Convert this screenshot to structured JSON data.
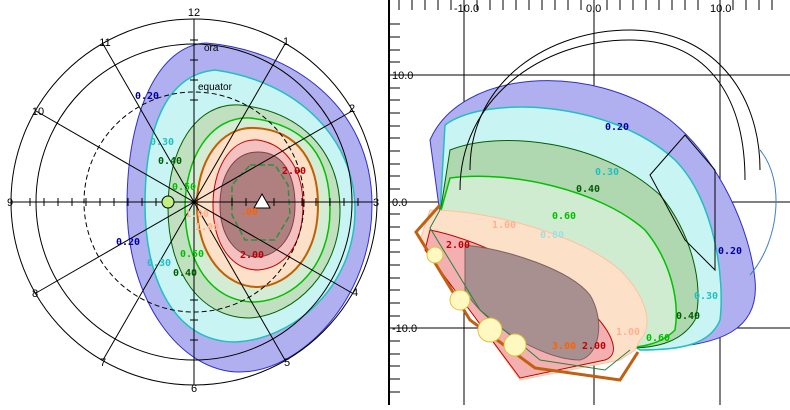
{
  "left": {
    "clock_labels": [
      "12",
      "1",
      "2",
      "3",
      "4",
      "5",
      "6",
      "7",
      "8",
      "9",
      "10",
      "11"
    ],
    "ring_labels": {
      "ora": "ora",
      "equator": "equator"
    },
    "contour_labels": [
      {
        "text": "0.20",
        "color": "#0000a0"
      },
      {
        "text": "0.30",
        "color": "#20c0c0"
      },
      {
        "text": "0.40",
        "color": "#006000"
      },
      {
        "text": "0.50",
        "color": "#00c000"
      },
      {
        "text": "1.00",
        "color": "#ffb090"
      },
      {
        "text": "2.00",
        "color": "#c00000"
      },
      {
        "text": "0.20",
        "color": "#0000a0"
      },
      {
        "text": "0.30",
        "color": "#20c0c0"
      },
      {
        "text": "0.40",
        "color": "#006000"
      },
      {
        "text": "0.50",
        "color": "#00c000"
      },
      {
        "text": "1.00",
        "color": "#ffb090"
      },
      {
        "text": "2.00",
        "color": "#c00000"
      },
      {
        "text": ".00",
        "color": "#ff6000"
      }
    ]
  },
  "right": {
    "axis_top": [
      "-10.0",
      "0.0",
      "10.0"
    ],
    "axis_left": [
      "10.0",
      "0.0",
      "-10.0"
    ],
    "contour_labels": [
      {
        "text": "0.20",
        "color": "#0000a0"
      },
      {
        "text": "0.30",
        "color": "#20c0c0"
      },
      {
        "text": "0.40",
        "color": "#006000"
      },
      {
        "text": "0.60",
        "color": "#00c000"
      },
      {
        "text": "1.00",
        "color": "#ffb090"
      },
      {
        "text": "0.80",
        "color": "#a0e0e0"
      },
      {
        "text": "2.00",
        "color": "#c00000"
      },
      {
        "text": "0.20",
        "color": "#0000a0"
      },
      {
        "text": "0.30",
        "color": "#20c0c0"
      },
      {
        "text": "0.40",
        "color": "#006000"
      },
      {
        "text": "0.60",
        "color": "#00c000"
      },
      {
        "text": "1.00",
        "color": "#ffb090"
      },
      {
        "text": "3.00",
        "color": "#ff6000"
      },
      {
        "text": "2.00",
        "color": "#c00000"
      }
    ]
  }
}
